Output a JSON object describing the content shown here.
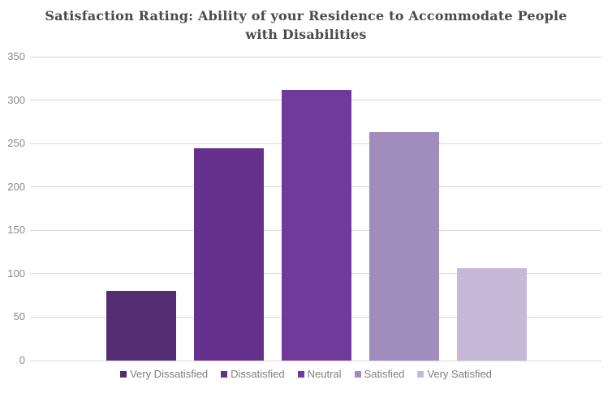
{
  "title": "Satisfaction Rating: Ability of your Residence to Accommodate People with Disabilities",
  "title_lines": [
    "Satisfaction Rating: Ability of your Residence to Accommodate People",
    "with Disabilities"
  ],
  "chart_data": {
    "type": "bar",
    "title": "Satisfaction Rating: Ability of your Residence to Accommodate People with Disabilities",
    "categories": [
      "Very Dissatisfied",
      "Dissatisfied",
      "Neutral",
      "Satisfied",
      "Very Satisfied"
    ],
    "values": [
      80,
      245,
      312,
      263,
      106
    ],
    "bar_colors": [
      "#522d71",
      "#66318c",
      "#6f3a9b",
      "#a18cbe",
      "#c6b9d8"
    ],
    "xlabel": "",
    "ylabel": "",
    "ylim": [
      0,
      350
    ],
    "yticks": [
      0,
      50,
      100,
      150,
      200,
      250,
      300,
      350
    ],
    "grid": true,
    "legend_position": "bottom"
  },
  "styles": {
    "background": "#ffffff",
    "grid_color": "#d9d9d9",
    "title_color": "#4a4a4a",
    "tick_label_color": "#8a8a8a",
    "legend_text_color": "#7f7f7f"
  }
}
